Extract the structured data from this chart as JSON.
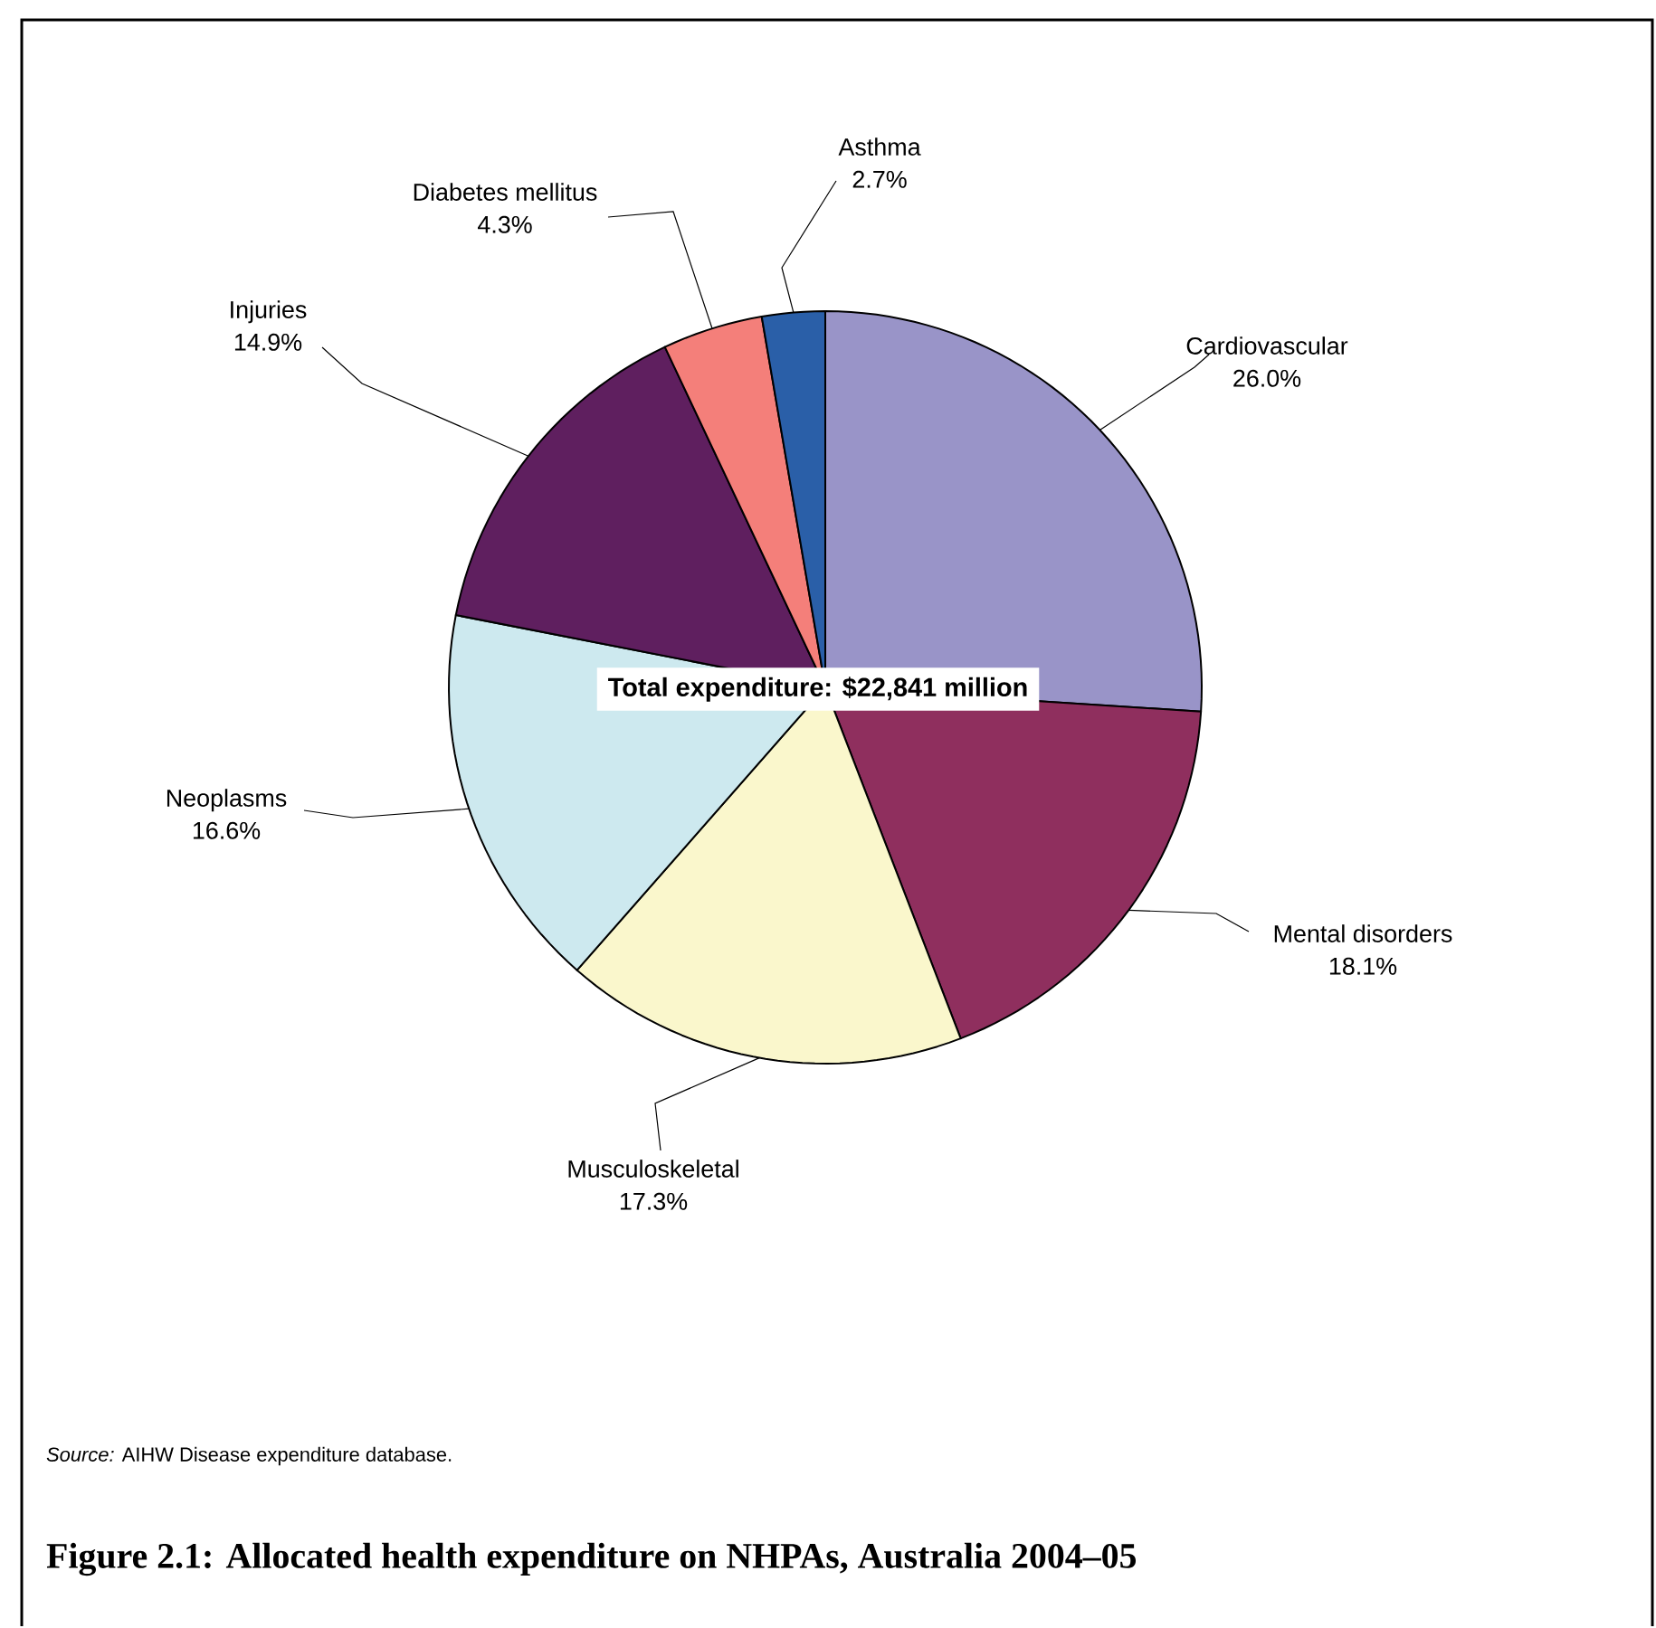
{
  "chart_data": {
    "type": "pie",
    "title": "Figure 2.1: Allocated health expenditure on NHPAs, Australia 2004–05",
    "categories": [
      "Cardiovascular",
      "Mental disorders",
      "Musculoskeletal",
      "Neoplasms",
      "Injuries",
      "Diabetes mellitus",
      "Asthma"
    ],
    "values": [
      26.0,
      18.1,
      17.3,
      16.6,
      14.9,
      4.3,
      2.7
    ],
    "value_labels": [
      "26.0%",
      "18.1%",
      "17.3%",
      "16.6%",
      "14.9%",
      "4.3%",
      "2.7%"
    ],
    "colors": [
      "#9994c8",
      "#8f2f5e",
      "#faf7cc",
      "#cde9ef",
      "#5f1f5f",
      "#f47f7a",
      "#2a5fa8"
    ],
    "annotations": [
      "Total expenditure: $22,841 million",
      "*Source:* AIHW Disease expenditure database."
    ]
  }
}
